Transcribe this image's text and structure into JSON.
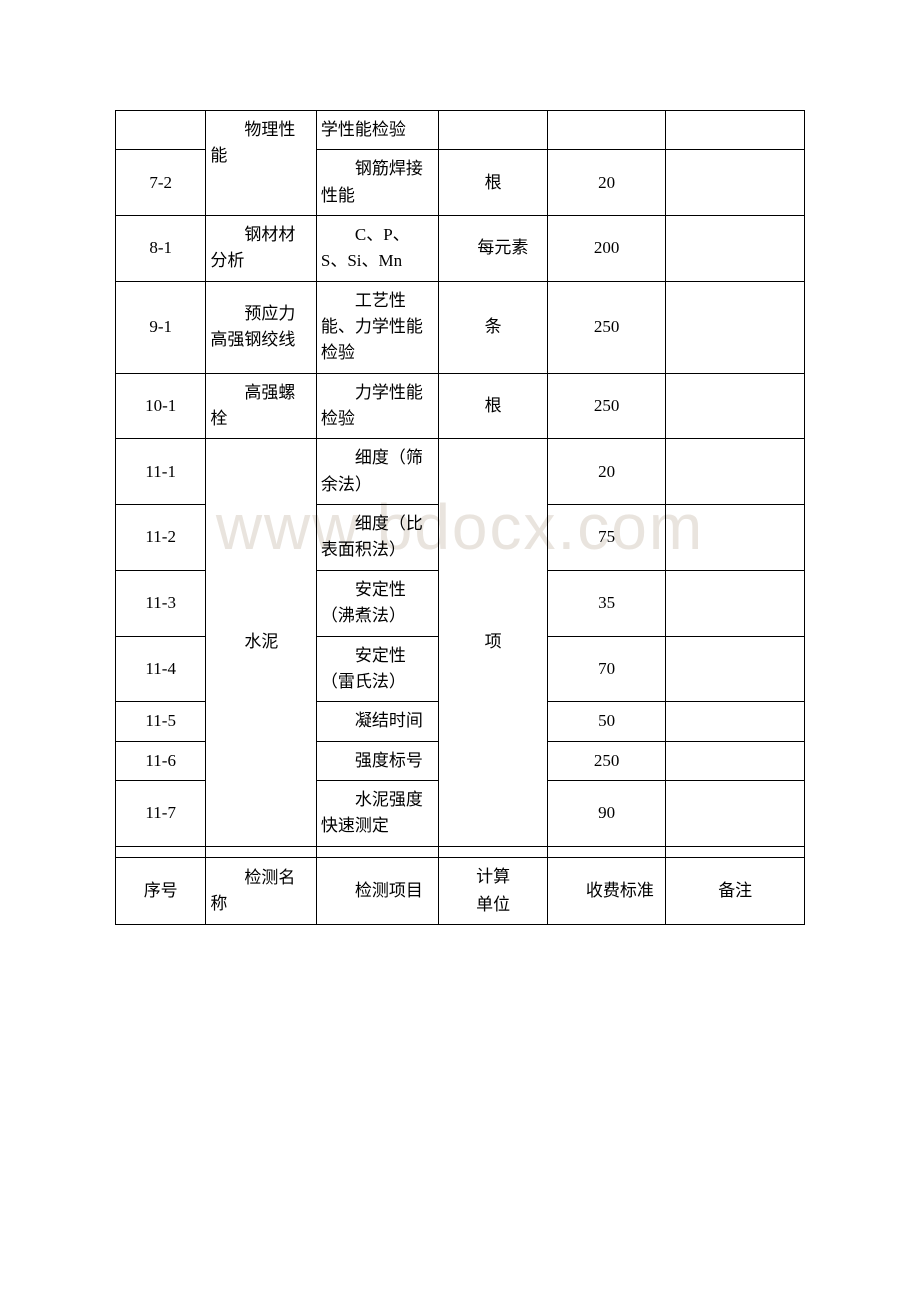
{
  "watermark": "www.bdocx.com",
  "rows": [
    {
      "idx": "",
      "col1": "物理性能",
      "col2": "学性能检验",
      "unit": "",
      "fee": "",
      "note": ""
    },
    {
      "idx": "7-2",
      "col1": "",
      "col2": "钢筋焊接性能",
      "unit": "根",
      "fee": "20",
      "note": ""
    },
    {
      "idx": "8-1",
      "col1": "钢材材分析",
      "col2": "C、P、S、Si、Mn",
      "unit": "每元素",
      "fee": "200",
      "note": ""
    },
    {
      "idx": "9-1",
      "col1": "预应力高强钢绞线",
      "col2": "工艺性能、力学性能检验",
      "unit": "条",
      "fee": "250",
      "note": ""
    },
    {
      "idx": "10-1",
      "col1": "高强螺栓",
      "col2": "力学性能检验",
      "unit": "根",
      "fee": "250",
      "note": ""
    },
    {
      "idx": "11-1",
      "col1": "水泥",
      "col2": "细度（筛余法）",
      "unit": "项",
      "fee": "20",
      "note": ""
    },
    {
      "idx": "11-2",
      "col1": "",
      "col2": "细度（比表面积法）",
      "unit": "",
      "fee": "75",
      "note": ""
    },
    {
      "idx": "11-3",
      "col1": "",
      "col2": "安定性（沸煮法）",
      "unit": "",
      "fee": "35",
      "note": ""
    },
    {
      "idx": "11-4",
      "col1": "",
      "col2": "安定性（雷氏法）",
      "unit": "",
      "fee": "70",
      "note": ""
    },
    {
      "idx": "11-5",
      "col1": "",
      "col2": "凝结时间",
      "unit": "",
      "fee": "50",
      "note": ""
    },
    {
      "idx": "11-6",
      "col1": "",
      "col2": "强度标号",
      "unit": "",
      "fee": "250",
      "note": ""
    },
    {
      "idx": "11-7",
      "col1": "",
      "col2": "水泥强度快速测定",
      "unit": "",
      "fee": "90",
      "note": ""
    }
  ],
  "header": {
    "c0": "序号",
    "c1": "检测名称",
    "c2": "检测项目",
    "c3a": "计算",
    "c3b": "单位",
    "c4": "收费标准",
    "c5": "备注"
  }
}
